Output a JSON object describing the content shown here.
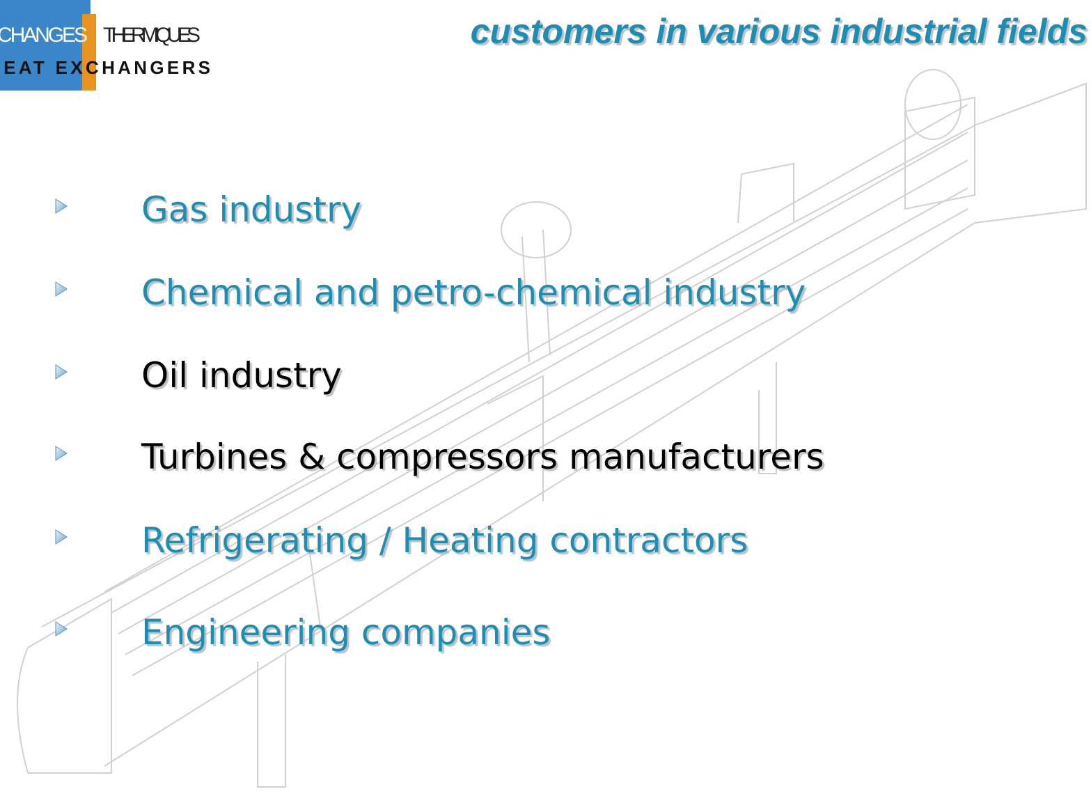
{
  "logo": {
    "word1": "CHANGES",
    "word2": "THERMIQUES",
    "tagline": "HEAT EXCHANGERS"
  },
  "title": "customers in various industrial fields",
  "items": [
    {
      "text": "Gas industry",
      "color": "#1b8db3"
    },
    {
      "text": "Chemical and petro-chemical industry",
      "color": "#1b8db3"
    },
    {
      "text": "Oil industry",
      "color": "#000000"
    },
    {
      "text": "Turbines & compressors manufacturers",
      "color": "#000000"
    },
    {
      "text": "Refrigerating / Heating contractors",
      "color": "#1b8db3"
    },
    {
      "text": "Engineering companies",
      "color": "#1b8db3"
    }
  ]
}
